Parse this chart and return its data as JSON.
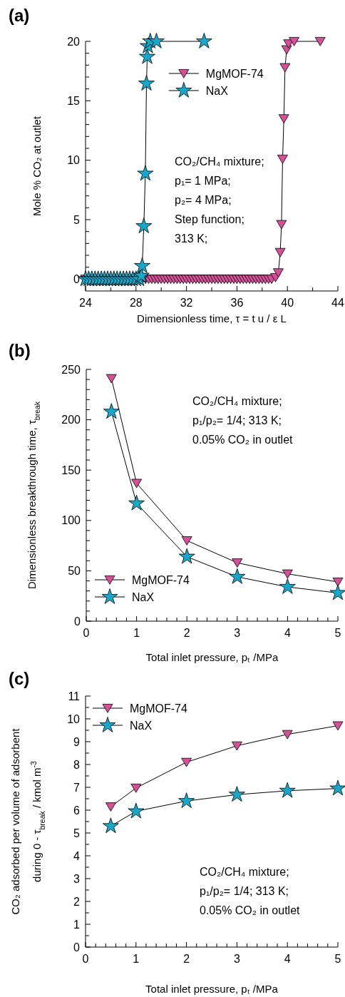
{
  "chart_data": [
    {
      "type": "line",
      "title": "(a)",
      "xlabel": "Dimensionless time, τ = t u / ε L",
      "ylabel": "Mole % CO₂ at outlet",
      "legend": "top",
      "xlim": [
        24,
        44
      ],
      "ylim": [
        -1,
        20
      ],
      "xticks": [
        24,
        {
          "value": 26,
          "label": null
        },
        28,
        {
          "value": 30,
          "label": null
        },
        32,
        {
          "value": 34,
          "label": null
        },
        36,
        {
          "value": 38,
          "label": null
        },
        40,
        {
          "value": 42,
          "label": null
        },
        44
      ],
      "yticks": [
        0,
        {
          "value": 1,
          "label": null
        },
        {
          "value": 2,
          "label": null
        },
        {
          "value": 3,
          "label": null
        },
        {
          "value": 4,
          "label": null
        },
        5,
        {
          "value": 6,
          "label": null
        },
        {
          "value": 7,
          "label": null
        },
        {
          "value": 8,
          "label": null
        },
        {
          "value": 9,
          "label": null
        },
        10,
        {
          "value": 11,
          "label": null
        },
        {
          "value": 12,
          "label": null
        },
        {
          "value": 13,
          "label": null
        },
        {
          "value": 14,
          "label": null
        },
        15,
        {
          "value": 16,
          "label": null
        },
        {
          "value": 17,
          "label": null
        },
        {
          "value": 18,
          "label": null
        },
        {
          "value": 19,
          "label": null
        },
        20
      ],
      "annotations": [
        "CO₂/CH₄ mixture;",
        "p₁= 1 MPa;",
        "p₂= 4 MPa;",
        "Step function;",
        "313 K;"
      ],
      "series": [
        {
          "name": "MgMOF-74",
          "color": "#d4509a",
          "marker": "triangle",
          "x": [
            24,
            24.25,
            24.5,
            24.75,
            25,
            25.25,
            25.5,
            25.75,
            26,
            26.25,
            26.5,
            26.75,
            27,
            27.25,
            27.5,
            27.75,
            28,
            28.25,
            28.5,
            28.75,
            29,
            29.25,
            29.5,
            29.75,
            30,
            30.25,
            30.5,
            30.75,
            31,
            31.25,
            31.5,
            31.75,
            32,
            32.25,
            32.5,
            32.75,
            33,
            33.25,
            33.5,
            33.75,
            34,
            34.25,
            34.5,
            34.75,
            35,
            35.25,
            35.5,
            35.75,
            36,
            36.25,
            36.5,
            36.75,
            37,
            37.25,
            37.5,
            37.75,
            38,
            38.25,
            38.5,
            38.75,
            39.06,
            39.28,
            39.43,
            39.53,
            39.62,
            39.72,
            39.81,
            39.94,
            40.09,
            40.53,
            42.6
          ],
          "values": [
            0,
            0,
            0,
            0,
            0,
            0,
            0,
            0,
            0,
            0,
            0,
            0,
            0,
            0,
            0,
            0,
            0,
            0,
            0,
            0,
            0,
            0,
            0,
            0,
            0,
            0,
            0,
            0,
            0,
            0,
            0,
            0,
            0,
            0,
            0,
            0,
            0,
            0,
            0,
            0,
            0,
            0,
            0,
            0,
            0,
            0,
            0,
            0,
            0,
            0,
            0,
            0,
            0,
            0,
            0,
            0,
            0,
            0,
            0,
            0,
            0.14,
            0.54,
            2.25,
            4.6,
            10.1,
            13.5,
            17.8,
            19.3,
            19.8,
            20,
            20
          ]
        },
        {
          "name": "NaX",
          "color": "#1aa6c8",
          "marker": "star",
          "x": [
            24,
            24.25,
            24.5,
            24.75,
            25,
            25.25,
            25.5,
            25.75,
            26,
            26.25,
            26.5,
            26.75,
            27,
            27.25,
            27.5,
            27.75,
            28,
            28.25,
            28.43,
            28.49,
            28.62,
            28.74,
            28.83,
            28.89,
            28.94,
            29.13,
            29.62,
            33.4
          ],
          "values": [
            0,
            0,
            0,
            0,
            0,
            0,
            0,
            0,
            0,
            0,
            0,
            0,
            0,
            0,
            0,
            0,
            0,
            0,
            0.28,
            1.1,
            4.45,
            8.87,
            16.45,
            18.7,
            19.6,
            20,
            20,
            20
          ]
        }
      ]
    },
    {
      "type": "line",
      "title": "(b)",
      "xlabel": "Total inlet pressure, pₜ /MPa",
      "ylabel": "Dimensionless breakthrough time, τ$_{break}$",
      "legend": "bottom left",
      "xlim": [
        0,
        5
      ],
      "ylim": [
        0,
        250
      ],
      "xticks": [
        0,
        {
          "value": 0.2,
          "label": null
        },
        {
          "value": 0.4,
          "label": null
        },
        {
          "value": 0.6,
          "label": null
        },
        {
          "value": 0.8,
          "label": null
        },
        1,
        {
          "value": 1.2,
          "label": null
        },
        {
          "value": 1.4,
          "label": null
        },
        {
          "value": 1.6,
          "label": null
        },
        {
          "value": 1.8,
          "label": null
        },
        2,
        {
          "value": 2.2,
          "label": null
        },
        {
          "value": 2.4,
          "label": null
        },
        {
          "value": 2.6,
          "label": null
        },
        {
          "value": 2.8,
          "label": null
        },
        3,
        {
          "value": 3.2,
          "label": null
        },
        {
          "value": 3.4,
          "label": null
        },
        {
          "value": 3.6,
          "label": null
        },
        {
          "value": 3.8,
          "label": null
        },
        4,
        {
          "value": 4.2,
          "label": null
        },
        {
          "value": 4.4,
          "label": null
        },
        {
          "value": 4.6,
          "label": null
        },
        {
          "value": 4.8,
          "label": null
        },
        5
      ],
      "yticks": [
        0,
        {
          "value": 10,
          "label": null
        },
        {
          "value": 20,
          "label": null
        },
        {
          "value": 30,
          "label": null
        },
        {
          "value": 40,
          "label": null
        },
        50,
        {
          "value": 60,
          "label": null
        },
        {
          "value": 70,
          "label": null
        },
        {
          "value": 80,
          "label": null
        },
        {
          "value": 90,
          "label": null
        },
        100,
        {
          "value": 110,
          "label": null
        },
        {
          "value": 120,
          "label": null
        },
        {
          "value": 130,
          "label": null
        },
        {
          "value": 140,
          "label": null
        },
        150,
        {
          "value": 160,
          "label": null
        },
        {
          "value": 170,
          "label": null
        },
        {
          "value": 180,
          "label": null
        },
        {
          "value": 190,
          "label": null
        },
        200,
        {
          "value": 210,
          "label": null
        },
        {
          "value": 220,
          "label": null
        },
        {
          "value": 230,
          "label": null
        },
        {
          "value": 240,
          "label": null
        },
        250
      ],
      "annotations": [
        "CO₂/CH₄ mixture;",
        "p₁/p₂= 1/4; 313 K;",
        "0.05% CO₂ in outlet"
      ],
      "x": [
        0.5,
        1,
        2,
        3,
        4,
        5
      ],
      "series": [
        {
          "name": "MgMOF-74",
          "color": "#d4509a",
          "marker": "triangle",
          "values": [
            241,
            137,
            80,
            58,
            47,
            39
          ]
        },
        {
          "name": "NaX",
          "color": "#1aa6c8",
          "marker": "star",
          "values": [
            208,
            117,
            64,
            44,
            34,
            28
          ]
        }
      ]
    },
    {
      "type": "line",
      "title": "(c)",
      "xlabel": "Total inlet pressure, pₜ /MPa",
      "ylabel": "CO₂ adsorbed per volume of adsorbent\nduring 0 - τ$_{break}$ / kmol m$^{-3}$",
      "legend": "top left",
      "xlim": [
        0,
        5
      ],
      "ylim": [
        0,
        11
      ],
      "xticks": [
        0,
        {
          "value": 0.2,
          "label": null
        },
        {
          "value": 0.4,
          "label": null
        },
        {
          "value": 0.6,
          "label": null
        },
        {
          "value": 0.8,
          "label": null
        },
        1,
        {
          "value": 1.2,
          "label": null
        },
        {
          "value": 1.4,
          "label": null
        },
        {
          "value": 1.6,
          "label": null
        },
        {
          "value": 1.8,
          "label": null
        },
        2,
        {
          "value": 2.2,
          "label": null
        },
        {
          "value": 2.4,
          "label": null
        },
        {
          "value": 2.6,
          "label": null
        },
        {
          "value": 2.8,
          "label": null
        },
        3,
        {
          "value": 3.2,
          "label": null
        },
        {
          "value": 3.4,
          "label": null
        },
        {
          "value": 3.6,
          "label": null
        },
        {
          "value": 3.8,
          "label": null
        },
        4,
        {
          "value": 4.2,
          "label": null
        },
        {
          "value": 4.4,
          "label": null
        },
        {
          "value": 4.6,
          "label": null
        },
        {
          "value": 4.8,
          "label": null
        },
        5
      ],
      "yticks": [
        0,
        {
          "value": 0.5,
          "label": null
        },
        1,
        {
          "value": 1.5,
          "label": null
        },
        2,
        {
          "value": 2.5,
          "label": null
        },
        3,
        {
          "value": 3.5,
          "label": null
        },
        4,
        {
          "value": 4.5,
          "label": null
        },
        5,
        {
          "value": 5.5,
          "label": null
        },
        6,
        {
          "value": 6.5,
          "label": null
        },
        7,
        {
          "value": 7.5,
          "label": null
        },
        8,
        {
          "value": 8.5,
          "label": null
        },
        9,
        {
          "value": 9.5,
          "label": null
        },
        10,
        {
          "value": 10.5,
          "label": null
        },
        11
      ],
      "annotations": [
        "CO₂/CH₄ mixture;",
        "p₁/p₂= 1/4; 313 K;",
        "0.05% CO₂ in outlet"
      ],
      "x": [
        0.5,
        1,
        2,
        3,
        4,
        5
      ],
      "series": [
        {
          "name": "MgMOF-74",
          "color": "#d4509a",
          "marker": "triangle",
          "values": [
            6.15,
            6.97,
            8.1,
            8.82,
            9.32,
            9.7
          ]
        },
        {
          "name": "NaX",
          "color": "#1aa6c8",
          "marker": "star",
          "values": [
            5.3,
            5.95,
            6.4,
            6.68,
            6.85,
            6.95
          ]
        }
      ]
    }
  ]
}
